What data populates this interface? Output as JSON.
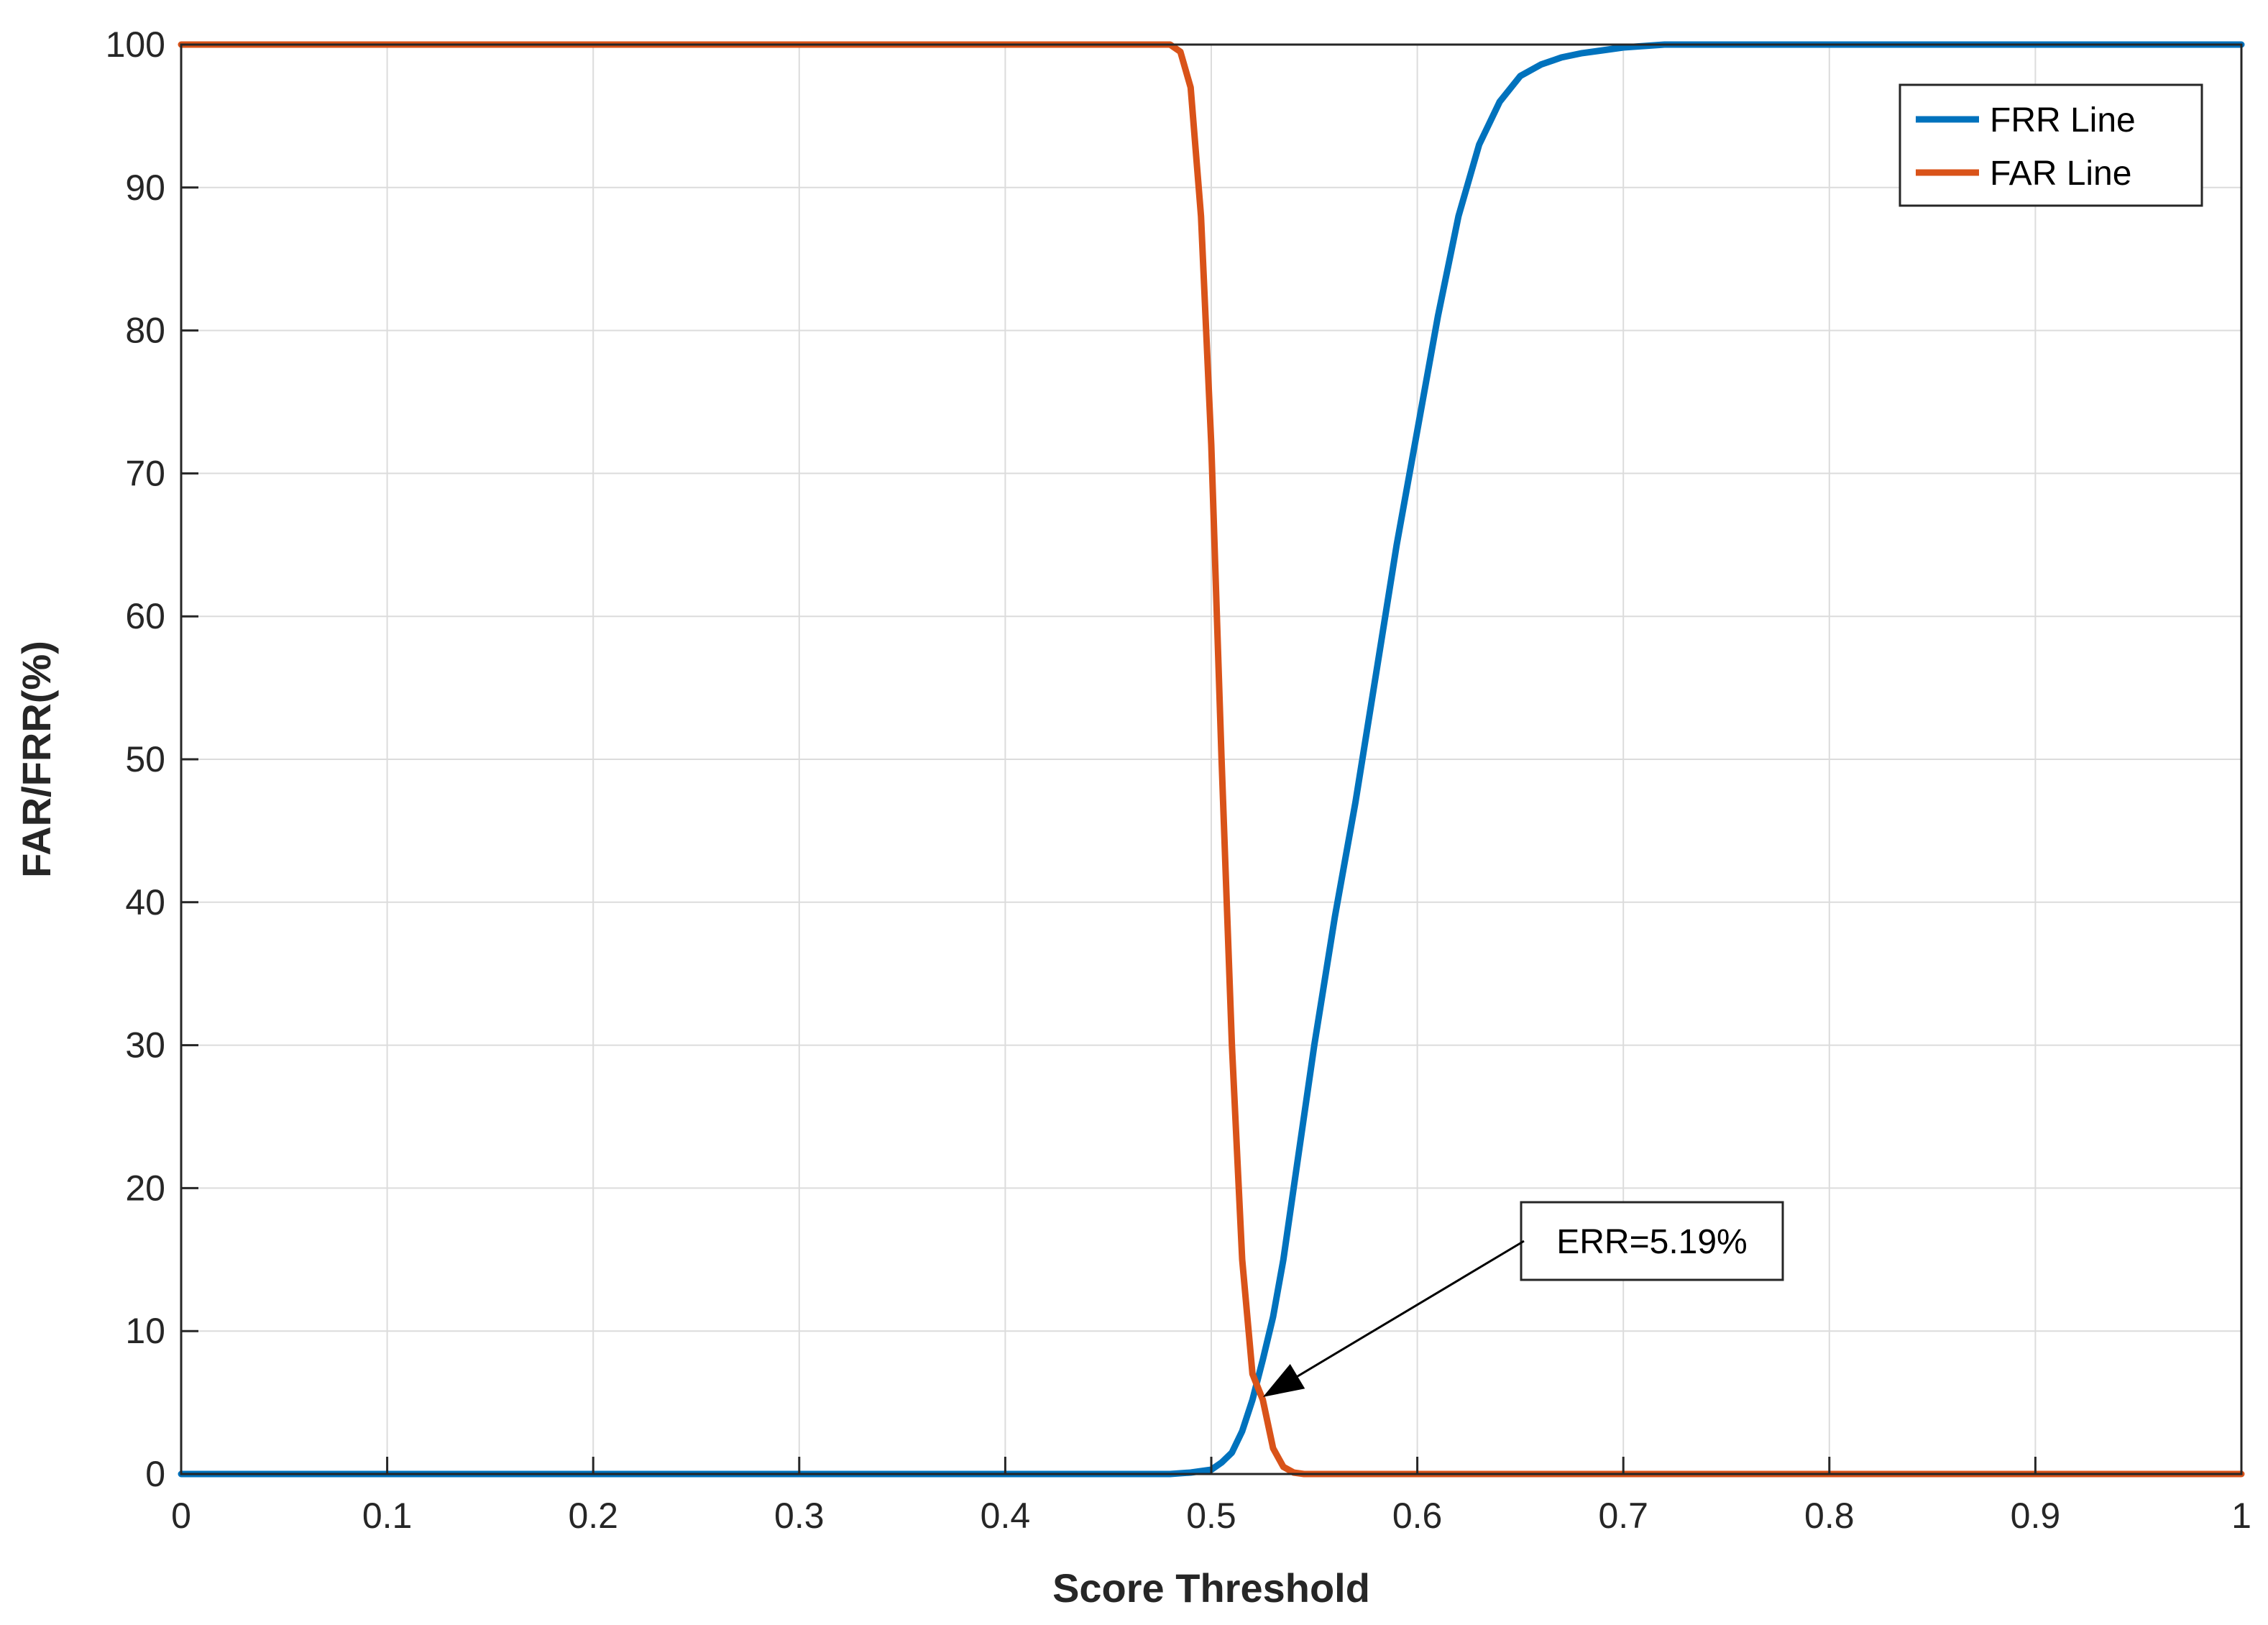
{
  "chart_data": {
    "type": "line",
    "title": "",
    "xlabel": "Score Threshold",
    "ylabel": "FAR/FRR(%)",
    "xlim": [
      0,
      1
    ],
    "ylim": [
      0,
      100
    ],
    "xticks": [
      "0",
      "0.1",
      "0.2",
      "0.3",
      "0.4",
      "0.5",
      "0.6",
      "0.7",
      "0.8",
      "0.9",
      "1"
    ],
    "yticks": [
      "0",
      "10",
      "20",
      "30",
      "40",
      "50",
      "60",
      "70",
      "80",
      "90",
      "100"
    ],
    "grid": true,
    "legend_position": "top-right",
    "series": [
      {
        "name": "FRR Line",
        "color": "#0072BD",
        "x": [
          0,
          0.48,
          0.49,
          0.5,
          0.505,
          0.51,
          0.515,
          0.52,
          0.525,
          0.53,
          0.535,
          0.54,
          0.55,
          0.56,
          0.57,
          0.58,
          0.59,
          0.6,
          0.61,
          0.62,
          0.63,
          0.64,
          0.65,
          0.66,
          0.67,
          0.68,
          0.69,
          0.7,
          0.71,
          0.72,
          0.73,
          0.75,
          1.0
        ],
        "y": [
          0,
          0,
          0.1,
          0.3,
          0.8,
          1.5,
          3,
          5.19,
          8,
          11,
          15,
          20,
          30,
          39,
          47,
          56,
          65,
          73,
          81,
          88,
          93,
          96,
          97.8,
          98.6,
          99.1,
          99.4,
          99.6,
          99.8,
          99.9,
          100,
          100,
          100,
          100
        ]
      },
      {
        "name": "FAR Line",
        "color": "#D95319",
        "x": [
          0,
          0.48,
          0.485,
          0.49,
          0.495,
          0.5,
          0.505,
          0.51,
          0.515,
          0.52,
          0.525,
          0.53,
          0.535,
          0.54,
          0.545,
          1.0
        ],
        "y": [
          100,
          100,
          99.5,
          97,
          88,
          72,
          50,
          30,
          15,
          7,
          5.19,
          1.8,
          0.5,
          0.1,
          0,
          0
        ]
      }
    ],
    "annotations": [
      {
        "text": "ERR=5.19%",
        "x": 0.523,
        "y": 5.19
      }
    ]
  }
}
